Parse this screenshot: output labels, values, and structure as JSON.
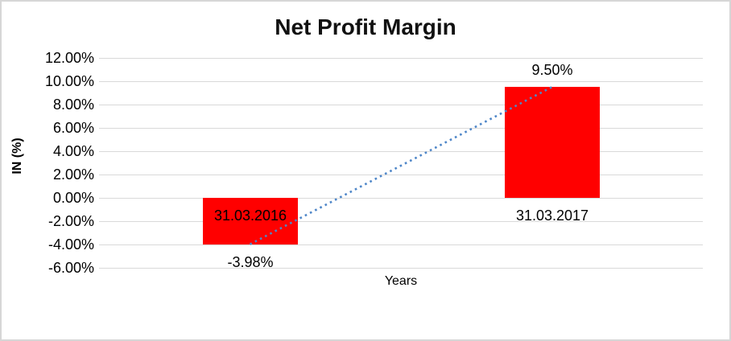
{
  "chart_data": {
    "type": "bar",
    "title": "Net Profit Margin",
    "xlabel": "Years",
    "ylabel": "IN (%)",
    "categories": [
      "31.03.2016",
      "31.03.2017"
    ],
    "values": [
      -3.98,
      9.5
    ],
    "data_labels": [
      "-3.98%",
      "9.50%"
    ],
    "ylim": [
      -6,
      12
    ],
    "y_ticks": [
      {
        "label": "12.00%",
        "value": 12
      },
      {
        "label": "10.00%",
        "value": 10
      },
      {
        "label": "8.00%",
        "value": 8
      },
      {
        "label": "6.00%",
        "value": 6
      },
      {
        "label": "4.00%",
        "value": 4
      },
      {
        "label": "2.00%",
        "value": 2
      },
      {
        "label": "0.00%",
        "value": 0
      },
      {
        "label": "-2.00%",
        "value": -2
      },
      {
        "label": "-4.00%",
        "value": -4
      },
      {
        "label": "-6.00%",
        "value": -6
      }
    ],
    "grid": true,
    "legend": "none",
    "colors": {
      "bar": "#FF0000",
      "trendline": "#4E86C8",
      "gridline": "#D9D9D9",
      "text": "#000000",
      "border": "#D6D6D6"
    },
    "trendline": {
      "type": "linear",
      "style": "dotted",
      "x": [
        0,
        1
      ],
      "y": [
        -3.98,
        9.5
      ]
    }
  }
}
